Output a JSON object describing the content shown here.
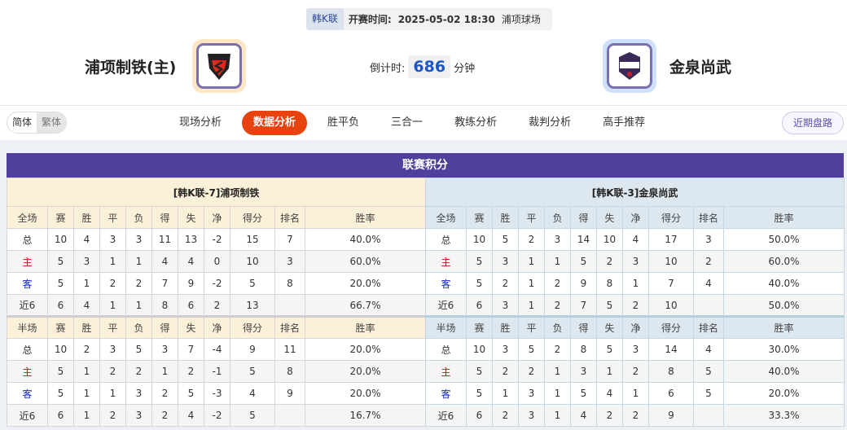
{
  "match": {
    "league": "韩K联",
    "time_label": "开赛时间:",
    "time": "2025-05-02 18:30",
    "venue": "浦项球场"
  },
  "home": {
    "name": "浦项制铁(主)",
    "table_title": "[韩K联-7]浦项制铁"
  },
  "away": {
    "name": "金泉尚武",
    "table_title": "[韩K联-3]金泉尚武"
  },
  "countdown": {
    "label": "倒计时:",
    "value": "686",
    "unit": "分钟"
  },
  "lang": [
    "简体",
    "繁体"
  ],
  "tabs": [
    "现场分析",
    "数据分析",
    "胜平负",
    "三合一",
    "教练分析",
    "裁判分析",
    "高手推荐"
  ],
  "active_tab": "数据分析",
  "recent_button": "近期盘路",
  "section_title": "联赛积分",
  "colors": {
    "accent": "#e8420f",
    "header": "#513f9c",
    "home_label": "#d4000c",
    "away_label": "#1028c8"
  },
  "columns_full": [
    "全场",
    "赛",
    "胜",
    "平",
    "负",
    "得",
    "失",
    "净",
    "得分",
    "排名",
    "胜率"
  ],
  "columns_half": [
    "半场",
    "赛",
    "胜",
    "平",
    "负",
    "得",
    "失",
    "净",
    "得分",
    "排名",
    "胜率"
  ],
  "home_full": [
    [
      "总",
      "10",
      "4",
      "3",
      "3",
      "11",
      "13",
      "-2",
      "15",
      "7",
      "40.0%"
    ],
    [
      "主",
      "5",
      "3",
      "1",
      "1",
      "4",
      "4",
      "0",
      "10",
      "3",
      "60.0%"
    ],
    [
      "客",
      "5",
      "1",
      "2",
      "2",
      "7",
      "9",
      "-2",
      "5",
      "8",
      "20.0%"
    ],
    [
      "近6",
      "6",
      "4",
      "1",
      "1",
      "8",
      "6",
      "2",
      "13",
      "",
      "66.7%"
    ]
  ],
  "home_half": [
    [
      "总",
      "10",
      "2",
      "3",
      "5",
      "3",
      "7",
      "-4",
      "9",
      "11",
      "20.0%"
    ],
    [
      "主",
      "5",
      "1",
      "2",
      "2",
      "1",
      "2",
      "-1",
      "5",
      "8",
      "20.0%"
    ],
    [
      "客",
      "5",
      "1",
      "1",
      "3",
      "2",
      "5",
      "-3",
      "4",
      "9",
      "20.0%"
    ],
    [
      "近6",
      "6",
      "1",
      "2",
      "3",
      "2",
      "4",
      "-2",
      "5",
      "",
      "16.7%"
    ]
  ],
  "away_full": [
    [
      "总",
      "10",
      "5",
      "2",
      "3",
      "14",
      "10",
      "4",
      "17",
      "3",
      "50.0%"
    ],
    [
      "主",
      "5",
      "3",
      "1",
      "1",
      "5",
      "2",
      "3",
      "10",
      "2",
      "60.0%"
    ],
    [
      "客",
      "5",
      "2",
      "1",
      "2",
      "9",
      "8",
      "1",
      "7",
      "4",
      "40.0%"
    ],
    [
      "近6",
      "6",
      "3",
      "1",
      "2",
      "7",
      "5",
      "2",
      "10",
      "",
      "50.0%"
    ]
  ],
  "away_half": [
    [
      "总",
      "10",
      "3",
      "5",
      "2",
      "8",
      "5",
      "3",
      "14",
      "4",
      "30.0%"
    ],
    [
      "主",
      "5",
      "2",
      "2",
      "1",
      "3",
      "1",
      "2",
      "8",
      "5",
      "40.0%"
    ],
    [
      "客",
      "5",
      "1",
      "3",
      "1",
      "5",
      "4",
      "1",
      "6",
      "5",
      "20.0%"
    ],
    [
      "近6",
      "6",
      "2",
      "3",
      "1",
      "4",
      "2",
      "2",
      "9",
      "",
      "33.3%"
    ]
  ]
}
